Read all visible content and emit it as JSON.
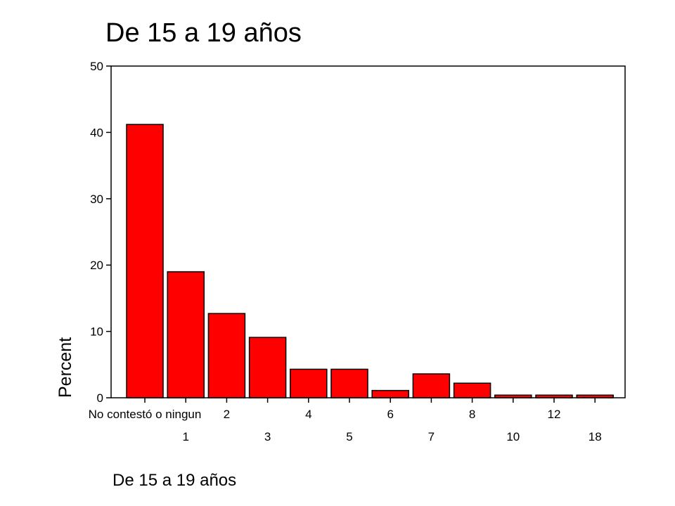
{
  "chart_data": {
    "type": "bar",
    "title": "De 15 a 19 años",
    "xlabel": "De 15 a 19 años",
    "ylabel": "Percent",
    "ylim": [
      0,
      50
    ],
    "yticks": [
      0,
      10,
      20,
      30,
      40,
      50
    ],
    "grid": false,
    "categories": [
      "No contestó o ningun",
      "1",
      "2",
      "3",
      "4",
      "5",
      "6",
      "7",
      "8",
      "10",
      "12",
      "18"
    ],
    "values": [
      41.2,
      19.0,
      12.7,
      9.1,
      4.3,
      4.3,
      1.1,
      3.6,
      2.2,
      0.4,
      0.4,
      0.4
    ],
    "bar_color": "#ff0000",
    "bar_outline": "#000000"
  }
}
